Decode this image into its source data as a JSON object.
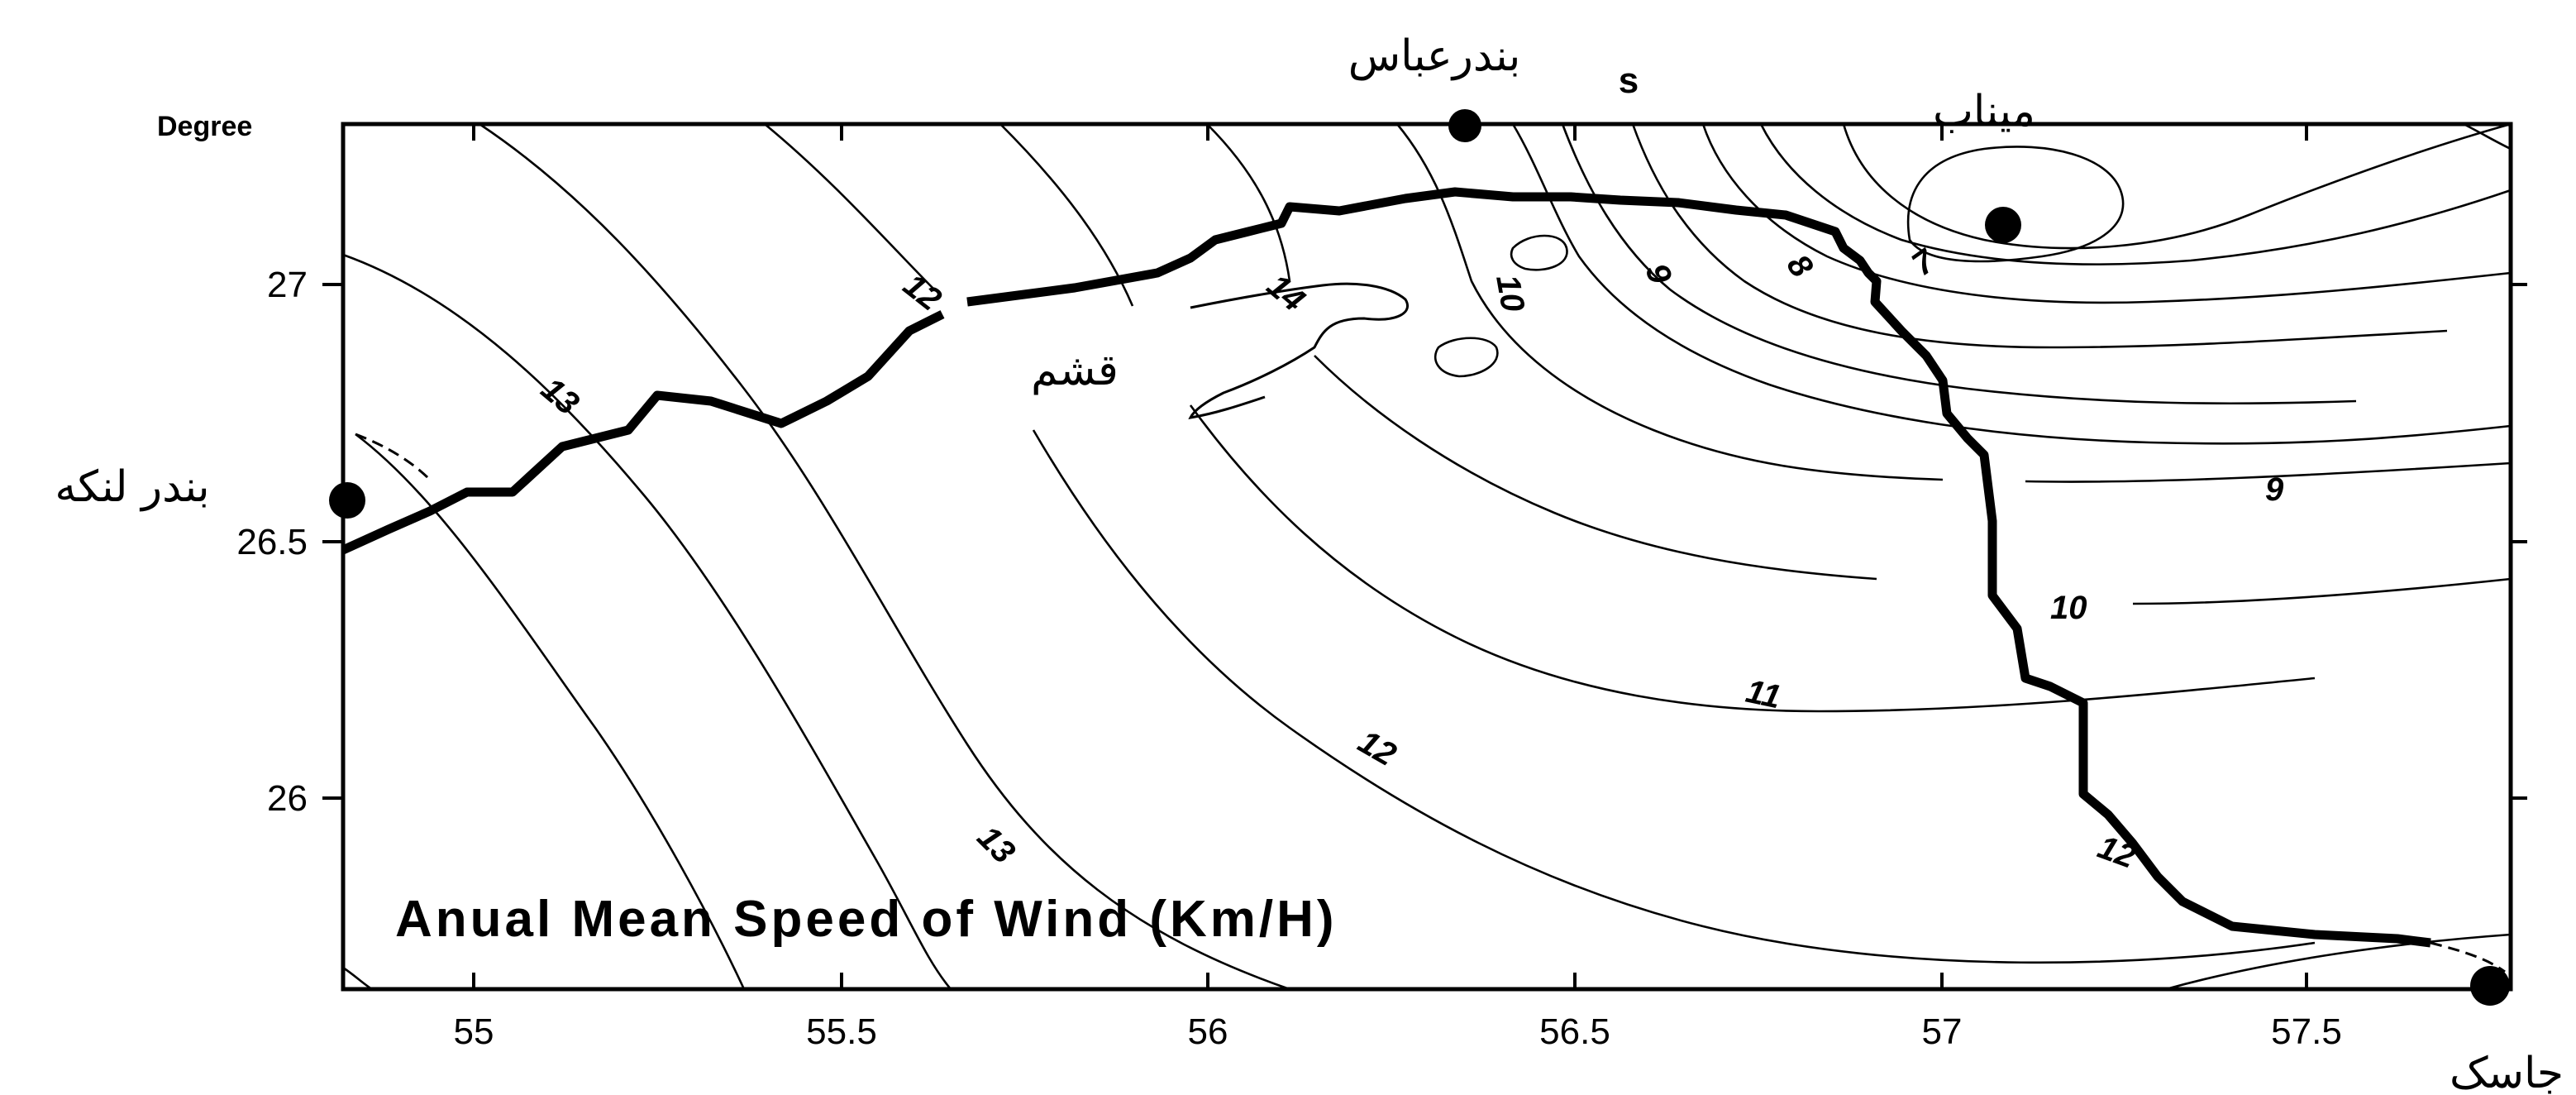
{
  "map": {
    "title": "Anual Mean Speed of Wind (Km/H)",
    "axis_title": "Degree",
    "x_ticks": [
      "55",
      "55.5",
      "56",
      "56.5",
      "57",
      "57.5"
    ],
    "y_ticks": [
      "27",
      "26.5",
      "26"
    ],
    "cities": [
      {
        "name": "بندرعباس",
        "lon": 56.35,
        "lat": 27.3
      },
      {
        "name": "میناب",
        "lon": 57.09,
        "lat": 27.11
      },
      {
        "name": "بندر لنکه",
        "lon": 54.83,
        "lat": 26.58
      },
      {
        "name": "جاسک",
        "lon": 57.77,
        "lat": 25.64
      }
    ],
    "island_label": "قشم",
    "s_marker": "s",
    "contour_labels": [
      "12",
      "13",
      "14",
      "10",
      "9",
      "8",
      "7",
      "9",
      "10",
      "11",
      "12",
      "13",
      "12"
    ],
    "contour_levels_kmh": [
      7,
      8,
      9,
      10,
      11,
      12,
      13,
      14
    ],
    "colors": {
      "contour": "#000000",
      "coastline": "#000000",
      "background": "#ffffff"
    }
  }
}
